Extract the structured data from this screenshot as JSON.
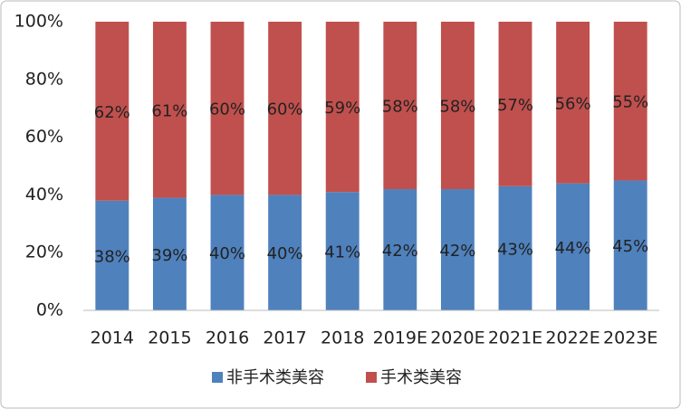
{
  "chart_data": {
    "type": "bar",
    "stacked": true,
    "categories": [
      "2014",
      "2015",
      "2016",
      "2017",
      "2018",
      "2019E",
      "2020E",
      "2021E",
      "2022E",
      "2023E"
    ],
    "series": [
      {
        "name": "非手术类美容",
        "color": "#4f81bd",
        "values": [
          38,
          39,
          40,
          40,
          41,
          42,
          42,
          43,
          44,
          45
        ],
        "value_labels": [
          "38%",
          "39%",
          "40%",
          "40%",
          "41%",
          "42%",
          "42%",
          "43%",
          "44%",
          "45%"
        ]
      },
      {
        "name": "手术类美容",
        "color": "#c0504d",
        "values": [
          62,
          61,
          60,
          60,
          59,
          58,
          58,
          57,
          56,
          55
        ],
        "value_labels": [
          "62%",
          "61%",
          "60%",
          "60%",
          "59%",
          "58%",
          "58%",
          "57%",
          "56%",
          "55%"
        ]
      }
    ],
    "ylim": [
      0,
      100
    ],
    "yticks": [
      {
        "value": 0,
        "label": "0%"
      },
      {
        "value": 20,
        "label": "20%"
      },
      {
        "value": 40,
        "label": "40%"
      },
      {
        "value": 60,
        "label": "60%"
      },
      {
        "value": 80,
        "label": "80%"
      },
      {
        "value": 100,
        "label": "100%"
      }
    ],
    "grid": false,
    "legend": "bottom"
  }
}
